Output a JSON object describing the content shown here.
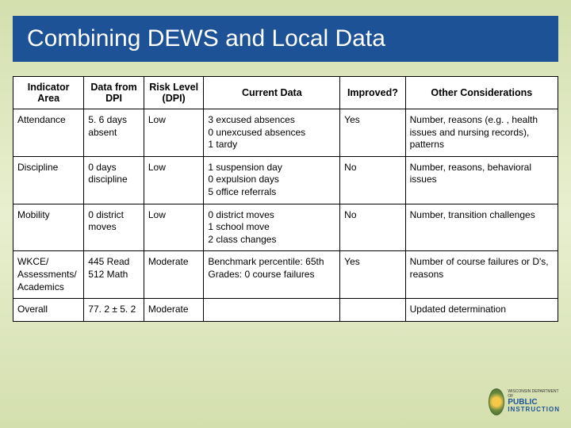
{
  "title": "Combining DEWS and Local Data",
  "colors": {
    "title_bg": "#1d5296",
    "title_text": "#ffffff",
    "page_bg_top": "#d4dfae",
    "page_bg_mid": "#e8efd0",
    "table_bg": "#ffffff",
    "border": "#000000"
  },
  "table": {
    "columns": [
      "Indicator Area",
      "Data from DPI",
      "Risk Level (DPI)",
      "Current Data",
      "Improved?",
      "Other Considerations"
    ],
    "rows": [
      {
        "indicator": "Attendance",
        "dpi": "5. 6 days absent",
        "risk": "Low",
        "current": "3 excused absences\n0 unexcused absences\n1 tardy",
        "improved": "Yes",
        "other": "Number, reasons (e.g. , health issues and nursing records), patterns"
      },
      {
        "indicator": "Discipline",
        "dpi": "0 days discipline",
        "risk": "Low",
        "current": "1 suspension day\n0 expulsion days\n5 office referrals",
        "improved": "No",
        "other": "Number, reasons, behavioral issues"
      },
      {
        "indicator": "Mobility",
        "dpi": "0 district moves",
        "risk": "Low",
        "current": "0 district moves\n1 school move\n2 class changes",
        "improved": "No",
        "other": "Number, transition challenges"
      },
      {
        "indicator": "WKCE/ Assessments/ Academics",
        "dpi": "445 Read\n512 Math",
        "risk": "Moderate",
        "current": "Benchmark percentile: 65th\nGrades: 0 course failures",
        "improved": "Yes",
        "other": "Number of course failures or D's, reasons"
      },
      {
        "indicator": "Overall",
        "dpi": "77. 2 ± 5. 2",
        "risk": "Moderate",
        "current": "",
        "improved": "",
        "other": "Updated determination"
      }
    ]
  },
  "logo": {
    "line1": "WISCONSIN DEPARTMENT OF",
    "line2": "PUBLIC",
    "line3": "INSTRUCTION"
  }
}
